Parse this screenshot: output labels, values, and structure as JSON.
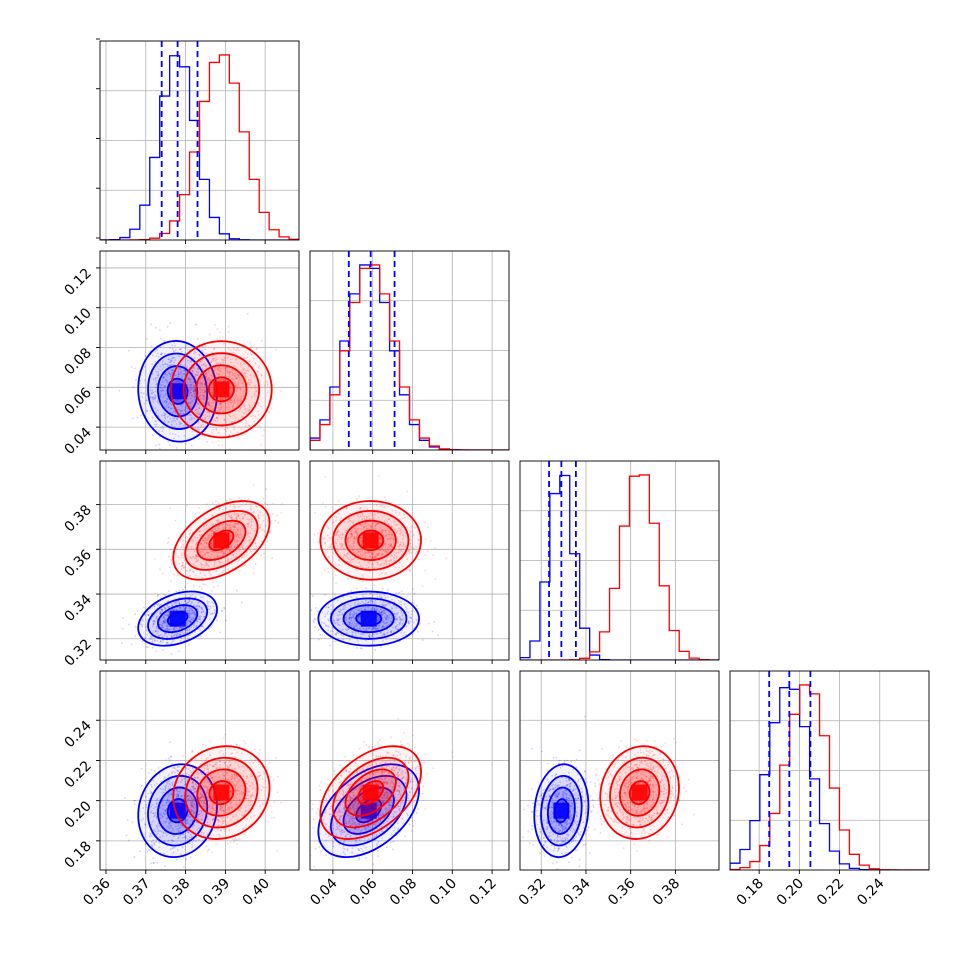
{
  "colors": {
    "series_a": "#0000ff",
    "series_b": "#ff0000",
    "grid": "#b0b0b0",
    "frame": "#000000"
  },
  "chart_data": {
    "type": "corner",
    "description_free": true,
    "grid": true,
    "parameters": [
      {
        "range": [
          0.3585,
          0.4085
        ],
        "ticks": [
          0.36,
          0.37,
          0.38,
          0.39,
          0.4
        ],
        "tick_labels": [
          "0.36",
          "0.37",
          "0.38",
          "0.39",
          "0.40"
        ]
      },
      {
        "range": [
          0.0285,
          0.1285
        ],
        "ticks": [
          0.04,
          0.06,
          0.08,
          0.1,
          0.12
        ],
        "tick_labels": [
          "0.04",
          "0.06",
          "0.08",
          "0.10",
          "0.12"
        ]
      },
      {
        "range": [
          0.3105,
          0.3995
        ],
        "ticks": [
          0.32,
          0.34,
          0.36,
          0.38
        ],
        "tick_labels": [
          "0.32",
          "0.34",
          "0.36",
          "0.38"
        ]
      },
      {
        "range": [
          0.1655,
          0.2645
        ],
        "ticks": [
          0.18,
          0.2,
          0.22,
          0.24
        ],
        "tick_labels": [
          "0.18",
          "0.20",
          "0.22",
          "0.24"
        ]
      }
    ],
    "series": [
      {
        "color": "#0000ff",
        "means": [
          0.378,
          0.058,
          0.329,
          0.195
        ],
        "sds": [
          0.0045,
          0.0115,
          0.0055,
          0.0105
        ],
        "quantiles": [
          [
            0.374,
            0.378,
            0.383
          ],
          [
            0.048,
            0.059,
            0.071
          ],
          [
            0.3235,
            0.329,
            0.3355
          ],
          [
            0.185,
            0.195,
            0.2055
          ]
        ]
      },
      {
        "color": "#ff0000",
        "means": [
          0.389,
          0.059,
          0.364,
          0.204
        ],
        "sds": [
          0.0055,
          0.0115,
          0.008,
          0.0105
        ]
      }
    ],
    "correlations": [
      {
        "i": 1,
        "j": 0,
        "series": [
          -0.05,
          0.0
        ]
      },
      {
        "i": 2,
        "j": 0,
        "series": [
          0.35,
          0.45
        ]
      },
      {
        "i": 2,
        "j": 1,
        "series": [
          0.0,
          0.0
        ]
      },
      {
        "i": 3,
        "j": 0,
        "series": [
          0.1,
          0.1
        ]
      },
      {
        "i": 3,
        "j": 1,
        "series": [
          0.45,
          0.45
        ]
      },
      {
        "i": 3,
        "j": 2,
        "series": [
          0.1,
          0.1
        ]
      }
    ],
    "contour_levels_sigma": [
      0.5,
      1.0,
      1.5,
      2.0
    ]
  }
}
